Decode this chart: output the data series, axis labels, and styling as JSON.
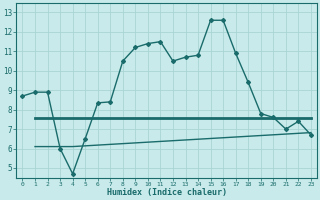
{
  "xlabel": "Humidex (Indice chaleur)",
  "bg_color": "#c8eaea",
  "grid_color": "#aad4d4",
  "line_color": "#1a6b6b",
  "xlim": [
    -0.5,
    23.5
  ],
  "ylim": [
    4.5,
    13.5
  ],
  "yticks": [
    5,
    6,
    7,
    8,
    9,
    10,
    11,
    12,
    13
  ],
  "xticks": [
    0,
    1,
    2,
    3,
    4,
    5,
    6,
    7,
    8,
    9,
    10,
    11,
    12,
    13,
    14,
    15,
    16,
    17,
    18,
    19,
    20,
    21,
    22,
    23
  ],
  "line1_x": [
    0,
    1,
    2,
    3,
    4,
    5,
    6,
    7,
    8,
    9,
    10,
    11,
    12,
    13,
    14,
    15,
    16,
    17,
    18,
    19,
    20,
    21,
    22,
    23
  ],
  "line1_y": [
    8.7,
    8.9,
    8.9,
    6.0,
    4.7,
    6.5,
    8.35,
    8.4,
    10.5,
    11.2,
    11.4,
    11.5,
    10.5,
    10.7,
    10.8,
    12.6,
    12.6,
    10.9,
    9.4,
    7.8,
    7.6,
    7.0,
    7.4,
    6.7
  ],
  "line2_x": [
    1,
    23
  ],
  "line2_y": [
    7.55,
    7.55
  ],
  "line3_x": [
    1,
    4,
    23
  ],
  "line3_y": [
    6.1,
    6.1,
    6.82
  ]
}
